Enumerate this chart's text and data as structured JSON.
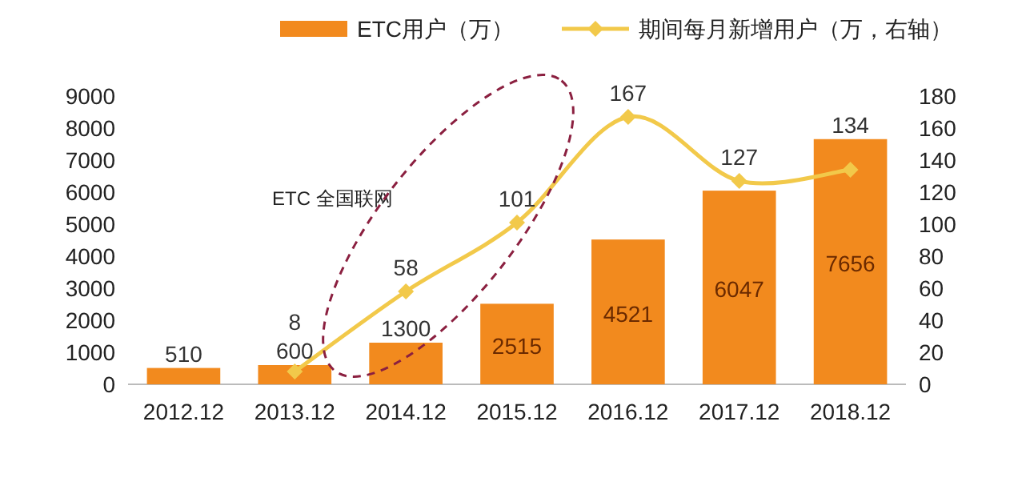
{
  "chart_data": {
    "type": "bar",
    "categories": [
      "2012.12",
      "2013.12",
      "2014.12",
      "2015.12",
      "2016.12",
      "2017.12",
      "2018.12"
    ],
    "series": [
      {
        "name": "ETC用户（万）",
        "color": "#f28a1e",
        "values": [
          510,
          600,
          1300,
          2515,
          4521,
          6047,
          7656
        ]
      },
      {
        "name": "期间每月新增用户（万，右轴）",
        "type": "line",
        "axis": "y2",
        "color": "#f2c94a",
        "marker": "diamond",
        "values": [
          null,
          8,
          58,
          101,
          167,
          127,
          134
        ]
      }
    ],
    "ylim": [
      0,
      9000
    ],
    "yticks": [
      0,
      1000,
      2000,
      3000,
      4000,
      5000,
      6000,
      7000,
      8000,
      9000
    ],
    "y2lim": [
      0,
      180
    ],
    "y2ticks": [
      0,
      20,
      40,
      60,
      80,
      100,
      120,
      140,
      160,
      180
    ],
    "data_labels": true,
    "legend": "top",
    "grid": false,
    "annotations": [
      "ETC 全国联网"
    ]
  }
}
